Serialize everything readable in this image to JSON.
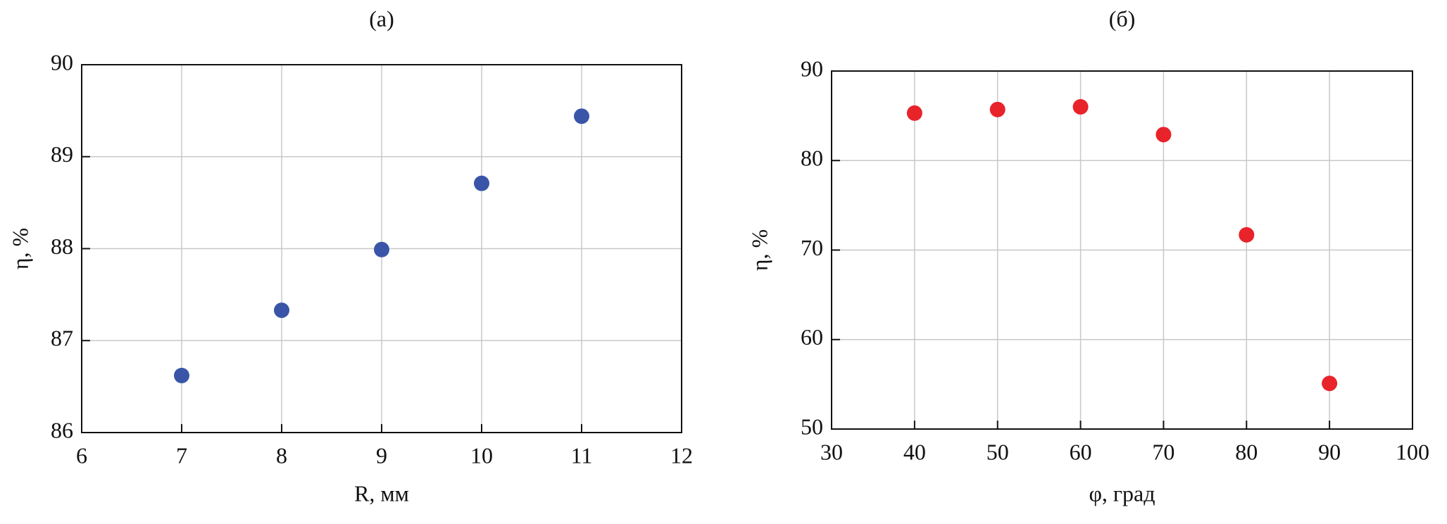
{
  "chart_data": [
    {
      "type": "scatter",
      "title": "(a)",
      "x_label": "R, мм",
      "y_label": "η, %",
      "x": [
        7,
        8,
        9,
        10,
        11
      ],
      "values": [
        86.62,
        87.33,
        87.99,
        88.71,
        89.44
      ],
      "color": "#3a55a8",
      "xlim": [
        6,
        12
      ],
      "xticks": [
        6,
        7,
        8,
        9,
        10,
        11,
        12
      ],
      "ylim": [
        86,
        90
      ],
      "yticks": [
        86,
        87,
        88,
        89,
        90
      ],
      "grid": true
    },
    {
      "type": "scatter",
      "title": "(б)",
      "x_label": "φ, град",
      "y_label": "η, %",
      "x": [
        40,
        50,
        60,
        70,
        80,
        90
      ],
      "values": [
        85.3,
        85.7,
        86.0,
        82.9,
        71.7,
        55.1
      ],
      "color": "#e8232a",
      "xlim": [
        30,
        100
      ],
      "xticks": [
        30,
        40,
        50,
        60,
        70,
        80,
        90,
        100
      ],
      "ylim": [
        50,
        90
      ],
      "yticks": [
        50,
        60,
        70,
        80,
        90
      ],
      "grid": true
    }
  ]
}
